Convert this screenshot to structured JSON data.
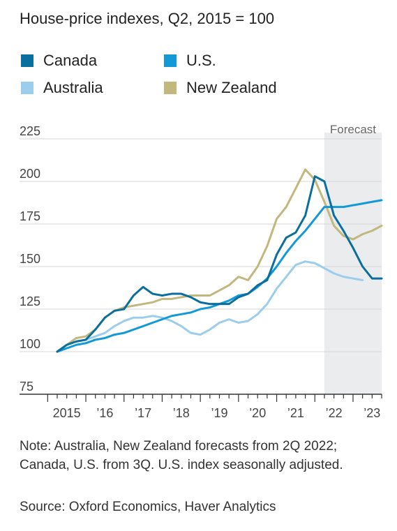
{
  "title": "House-price indexes, Q2, 2015 = 100",
  "note": "Note: Australia, New Zealand forecasts from 2Q 2022; Canada, U.S. from 3Q. U.S. index seasonally adjusted.",
  "source": "Source: Oxford Economics, Haver Analytics",
  "colors": {
    "canada": "#0a6e9e",
    "us": "#1399d8",
    "australia": "#9dcdec",
    "new_zealand": "#c2b77c",
    "forecast_band": "#eaecee",
    "grid": "#d6d6d6",
    "axis": "#333333"
  },
  "chart_data": {
    "type": "line",
    "title": "House-price indexes, Q2, 2015 = 100",
    "ylim": [
      75,
      225
    ],
    "yticks": [
      75,
      100,
      125,
      150,
      175,
      200,
      225
    ],
    "xlim": [
      2015.25,
      2023.75
    ],
    "xtick_labels": [
      {
        "x": 2015,
        "label": "2015"
      },
      {
        "x": 2016,
        "label": "’16"
      },
      {
        "x": 2017,
        "label": "’17"
      },
      {
        "x": 2018,
        "label": "’18"
      },
      {
        "x": 2019,
        "label": "’19"
      },
      {
        "x": 2020,
        "label": "’20"
      },
      {
        "x": 2021,
        "label": "’21"
      },
      {
        "x": 2022,
        "label": "’22"
      },
      {
        "x": 2023,
        "label": "’23"
      }
    ],
    "forecast": {
      "label": "Forecast",
      "from": 2022.25,
      "to": 2023.75
    },
    "legend": [
      {
        "key": "canada",
        "label": "Canada"
      },
      {
        "key": "us",
        "label": "U.S."
      },
      {
        "key": "australia",
        "label": "Australia"
      },
      {
        "key": "new_zealand",
        "label": "New Zealand"
      }
    ],
    "x": [
      2015.25,
      2015.5,
      2015.75,
      2016,
      2016.25,
      2016.5,
      2016.75,
      2017,
      2017.25,
      2017.5,
      2017.75,
      2018,
      2018.25,
      2018.5,
      2018.75,
      2019,
      2019.25,
      2019.5,
      2019.75,
      2020,
      2020.25,
      2020.5,
      2020.75,
      2021,
      2021.25,
      2021.5,
      2021.75,
      2022,
      2022.25,
      2022.5,
      2022.75,
      2023,
      2023.25,
      2023.5,
      2023.75
    ],
    "series": [
      {
        "key": "australia",
        "name": "Australia",
        "values": [
          100,
          104,
          106,
          107,
          109,
          111,
          115,
          118,
          120,
          120,
          121,
          120,
          118,
          115,
          111,
          110,
          113,
          117,
          119,
          117,
          118,
          122,
          128,
          137,
          144,
          151,
          153,
          152,
          149,
          146,
          144,
          143,
          142,
          null,
          null
        ]
      },
      {
        "key": "new_zealand",
        "name": "New Zealand",
        "values": [
          100,
          104,
          108,
          109,
          113,
          120,
          124,
          126,
          127,
          128,
          129,
          131,
          131,
          132,
          133,
          133,
          133,
          136,
          139,
          144,
          142,
          150,
          162,
          178,
          185,
          196,
          207,
          201,
          188,
          174,
          168,
          166,
          169,
          171,
          174
        ]
      },
      {
        "key": "us",
        "name": "U.S.",
        "values": [
          100,
          102,
          104,
          105,
          107,
          108,
          110,
          111,
          113,
          115,
          117,
          119,
          121,
          122,
          123,
          125,
          126,
          128,
          130,
          133,
          134,
          138,
          143,
          150,
          158,
          165,
          171,
          178,
          185,
          185,
          185,
          186,
          187,
          188,
          189
        ]
      },
      {
        "key": "canada",
        "name": "Canada",
        "values": [
          100,
          104,
          106,
          107,
          113,
          120,
          124,
          125,
          133,
          138,
          134,
          133,
          134,
          134,
          132,
          129,
          128,
          128,
          128,
          132,
          134,
          139,
          142,
          157,
          167,
          170,
          180,
          203,
          200,
          180,
          171,
          161,
          150,
          143,
          143
        ]
      }
    ]
  }
}
